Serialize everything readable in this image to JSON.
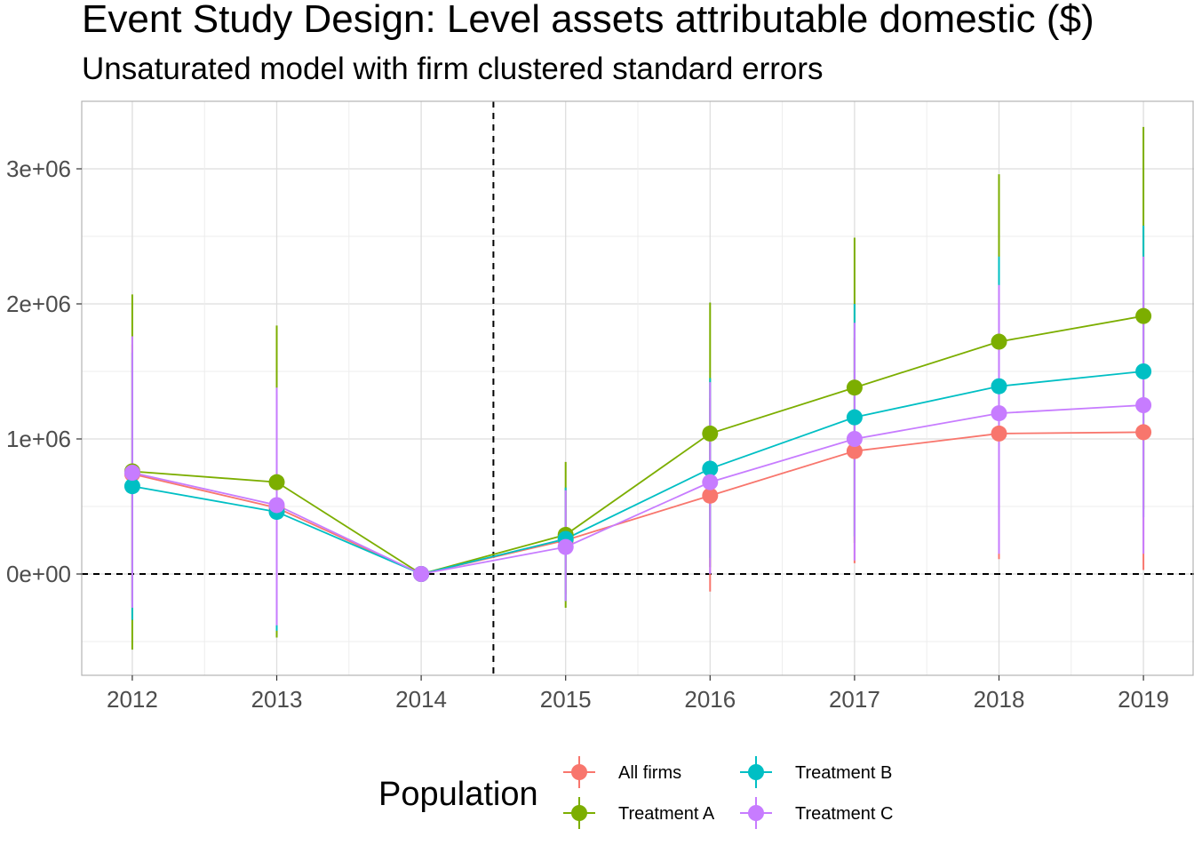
{
  "title": "Event Study Design: Level assets attributable domestic  ($)",
  "subtitle": "Unsaturated model with firm clustered standard errors",
  "colors": {
    "All firms": "#F8766D",
    "Treatment A": "#7CAE00",
    "Treatment B": "#00BFC4",
    "Treatment C": "#C77CFF"
  },
  "chart_data": {
    "type": "line",
    "x": [
      2012,
      2013,
      2014,
      2015,
      2016,
      2017,
      2018,
      2019
    ],
    "x_tick_labels": [
      "2012",
      "2013",
      "2014",
      "2015",
      "2016",
      "2017",
      "2018",
      "2019"
    ],
    "y_ticks": [
      0,
      1000000,
      2000000,
      3000000
    ],
    "y_tick_labels": [
      "0e+00",
      "1e+06",
      "2e+06",
      "3e+06"
    ],
    "ylim": [
      -750000,
      3500000
    ],
    "xlabel": "",
    "ylabel": "",
    "grid": true,
    "reference_lines": {
      "horizontal_y": 0,
      "vertical_x": 2014.5,
      "style": "dashed"
    },
    "legend": {
      "title": "Population",
      "placement": "bottom"
    },
    "series": [
      {
        "name": "All firms",
        "values": [
          740000,
          490000,
          0,
          250000,
          580000,
          910000,
          1040000,
          1050000
        ],
        "ci_low": [
          -200000,
          -350000,
          0,
          -150000,
          -130000,
          80000,
          110000,
          30000
        ],
        "ci_high": [
          1700000,
          1330000,
          0,
          620000,
          1300000,
          1750000,
          2000000,
          2100000
        ]
      },
      {
        "name": "Treatment A",
        "values": [
          760000,
          680000,
          0,
          290000,
          1040000,
          1380000,
          1720000,
          1910000
        ],
        "ci_low": [
          -560000,
          -470000,
          0,
          -250000,
          50000,
          230000,
          440000,
          480000
        ],
        "ci_high": [
          2070000,
          1840000,
          0,
          830000,
          2010000,
          2490000,
          2960000,
          3310000
        ]
      },
      {
        "name": "Treatment B",
        "values": [
          650000,
          460000,
          0,
          260000,
          780000,
          1160000,
          1390000,
          1500000
        ],
        "ci_low": [
          -340000,
          -420000,
          0,
          -200000,
          120000,
          280000,
          420000,
          420000
        ],
        "ci_high": [
          1640000,
          1340000,
          0,
          640000,
          1450000,
          2000000,
          2350000,
          2580000
        ]
      },
      {
        "name": "Treatment C",
        "values": [
          750000,
          510000,
          0,
          200000,
          680000,
          1000000,
          1190000,
          1250000
        ],
        "ci_low": [
          -250000,
          -380000,
          0,
          -200000,
          0,
          100000,
          150000,
          150000
        ],
        "ci_high": [
          1760000,
          1380000,
          0,
          620000,
          1420000,
          1860000,
          2140000,
          2350000
        ]
      }
    ]
  }
}
